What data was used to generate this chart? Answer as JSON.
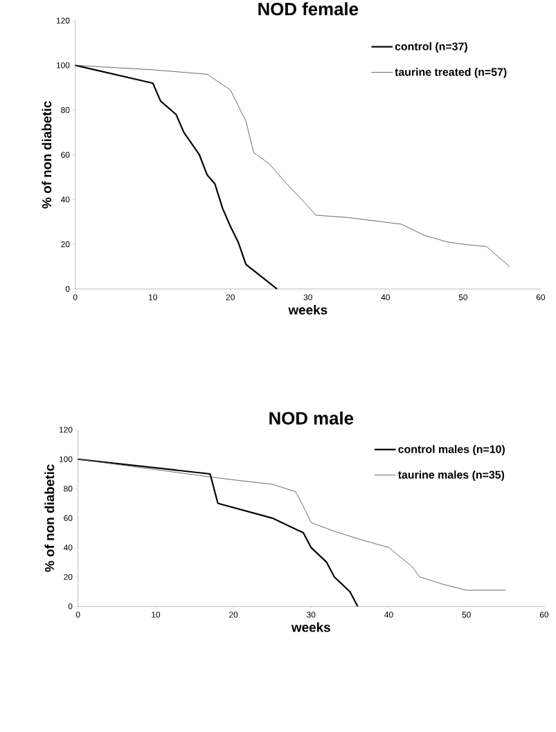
{
  "chart_data": [
    {
      "type": "line",
      "title": "NOD female",
      "xlabel": "weeks",
      "ylabel": "% of non diabetic",
      "xlim": [
        0,
        60
      ],
      "ylim": [
        0,
        120
      ],
      "xticks": [
        0,
        10,
        20,
        30,
        40,
        50,
        60
      ],
      "yticks": [
        0,
        20,
        40,
        60,
        80,
        100,
        120
      ],
      "legend": "top right",
      "marker": "none",
      "series": [
        {
          "name": "control (n=37)",
          "color": "#000000",
          "line_style": "solid",
          "x": [
            0,
            10,
            11,
            13,
            14,
            16,
            17,
            18,
            19,
            20,
            21,
            22,
            26
          ],
          "values": [
            100,
            92,
            84,
            78,
            70,
            60,
            51,
            47,
            36,
            28,
            21,
            11,
            0
          ]
        },
        {
          "name": "taurine treated (n=57)",
          "color": "#555555",
          "line_style": "dotted",
          "x": [
            0,
            10,
            17,
            20,
            22,
            23,
            25,
            27,
            30,
            31,
            35,
            42,
            45,
            48,
            50,
            53,
            56
          ],
          "values": [
            100,
            98,
            96,
            89,
            75,
            61,
            56,
            48,
            37,
            33,
            32,
            29,
            24,
            21,
            20,
            19,
            10
          ]
        }
      ]
    },
    {
      "type": "line",
      "title": "NOD male",
      "xlabel": "weeks",
      "ylabel": "% of non diabetic",
      "xlim": [
        0,
        60
      ],
      "ylim": [
        0,
        120
      ],
      "xticks": [
        0,
        10,
        20,
        30,
        40,
        50,
        60
      ],
      "yticks": [
        0,
        20,
        40,
        60,
        80,
        100,
        120
      ],
      "legend": "top right",
      "marker": "none",
      "series": [
        {
          "name": "control males (n=10)",
          "color": "#000000",
          "line_style": "solid",
          "x": [
            0,
            17,
            18,
            25,
            29,
            30,
            32,
            33,
            35,
            36
          ],
          "values": [
            100,
            90,
            70,
            60,
            50,
            40,
            30,
            20,
            10,
            0
          ]
        },
        {
          "name": "taurine males (n=35)",
          "color": "#555555",
          "line_style": "dotted",
          "x": [
            0,
            17,
            20,
            25,
            28,
            29,
            30,
            32,
            33,
            36,
            40,
            43,
            44,
            47,
            50,
            55
          ],
          "values": [
            100,
            88,
            86,
            83,
            78,
            68,
            57,
            53,
            51,
            46,
            40,
            27,
            20,
            15,
            11,
            11
          ]
        }
      ]
    }
  ]
}
